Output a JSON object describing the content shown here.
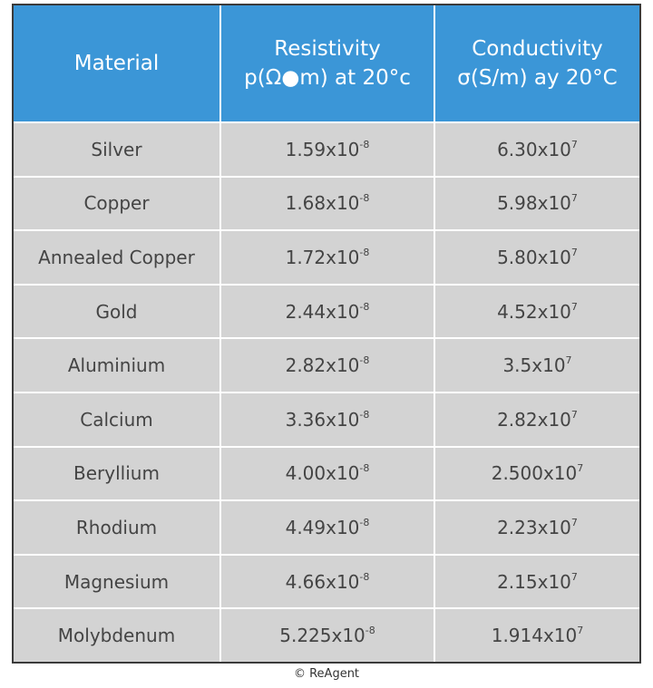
{
  "table": {
    "header": [
      "Material",
      [
        "Resistivity",
        "p(Ω●m) at 20°c"
      ],
      [
        "Conductivity",
        "σ(S/m) ay 20°C"
      ]
    ],
    "rows": [
      [
        "Silver",
        {
          "base": "1.59x10",
          "exp": "-8"
        },
        {
          "base": "6.30x10",
          "exp": "7"
        }
      ],
      [
        "Copper",
        {
          "base": "1.68x10",
          "exp": "-8"
        },
        {
          "base": "5.98x10",
          "exp": "7"
        }
      ],
      [
        "Annealed Copper",
        {
          "base": "1.72x10",
          "exp": "-8"
        },
        {
          "base": "5.80x10",
          "exp": "7"
        }
      ],
      [
        "Gold",
        {
          "base": "2.44x10",
          "exp": "-8"
        },
        {
          "base": "4.52x10",
          "exp": "7"
        }
      ],
      [
        "Aluminium",
        {
          "base": "2.82x10",
          "exp": "-8"
        },
        {
          "base": "3.5x10",
          "exp": "7"
        }
      ],
      [
        "Calcium",
        {
          "base": "3.36x10",
          "exp": "-8"
        },
        {
          "base": "2.82x10",
          "exp": "7"
        }
      ],
      [
        "Beryllium",
        {
          "base": "4.00x10",
          "exp": "-8"
        },
        {
          "base": "2.500x10",
          "exp": "7"
        }
      ],
      [
        "Rhodium",
        {
          "base": "4.49x10",
          "exp": "-8"
        },
        {
          "base": "2.23x10",
          "exp": "7"
        }
      ],
      [
        "Magnesium",
        {
          "base": "4.66x10",
          "exp": "-8"
        },
        {
          "base": "2.15x10",
          "exp": "7"
        }
      ],
      [
        "Molybdenum",
        {
          "base": "5.225x10",
          "exp": "-8"
        },
        {
          "base": "1.914x10",
          "exp": "7"
        }
      ]
    ]
  },
  "footer": "© ReAgent"
}
